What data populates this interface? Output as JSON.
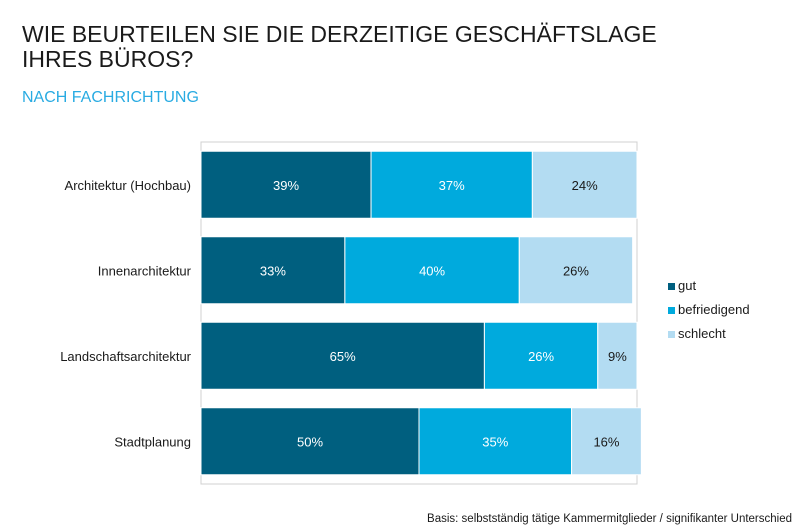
{
  "title_lines": [
    "WIE BEURTEILEN SIE DIE DERZEITIGE GESCHÄFTSLAGE",
    "IHRES BÜROS?"
  ],
  "subtitle": "NACH FACHRICHTUNG",
  "footnote": "Basis: selbstständig tätige Kammermitglieder / signifikanter Unterschied",
  "colors": {
    "gut": "#005f7f",
    "befriedigend": "#00aadd",
    "schlecht": "#b3dcf2"
  },
  "chart_data": {
    "type": "bar",
    "orientation": "horizontal",
    "stacked": true,
    "normalized": true,
    "categories": [
      "Architektur (Hochbau)",
      "Innenarchitektur",
      "Landschaftsarchitektur",
      "Stadtplanung"
    ],
    "series": [
      {
        "name": "gut",
        "values": [
          39,
          33,
          65,
          50
        ],
        "labels": [
          "39%",
          "33%",
          "65%",
          "50%"
        ]
      },
      {
        "name": "befriedigend",
        "values": [
          37,
          40,
          26,
          35
        ],
        "labels": [
          "37%",
          "40%",
          "26%",
          "35%"
        ]
      },
      {
        "name": "schlecht",
        "values": [
          24,
          26,
          9,
          16
        ],
        "labels": [
          "24%",
          "26%",
          "9%",
          "16%"
        ]
      }
    ],
    "xlim": [
      0,
      100
    ],
    "grid": false,
    "legend": "right"
  }
}
